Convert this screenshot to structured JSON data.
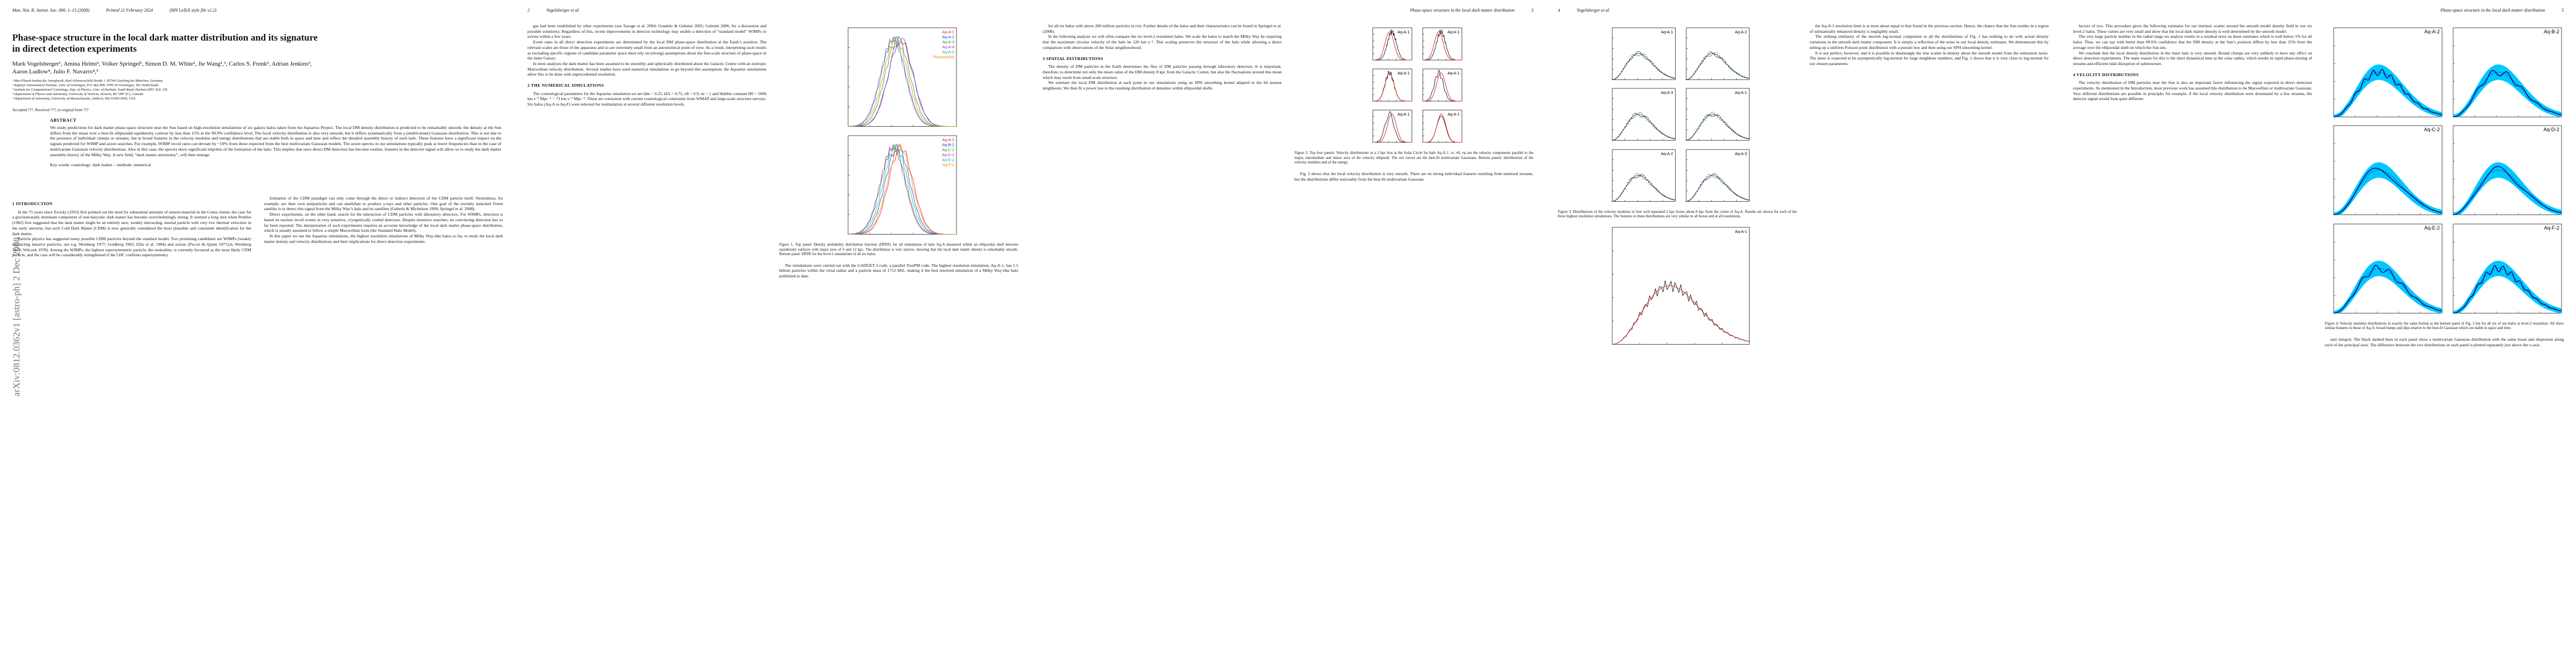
{
  "pages": [
    {
      "header": [
        "Mon. Not. R. Astron. Soc. 000, 1–15 (2008)",
        "Printed 21 February 2024",
        "(MN LaTeX style file v2.2)"
      ],
      "sidebar": "arXiv:0812.0362v1  [astro-ph]  2 Dec 2008",
      "front": {
        "title": "Phase-space structure in the local dark matter distribution and its signature in direct detection experiments",
        "authors": "Mark Vogelsberger¹, Amina Helmi², Volker Springel¹, Simon D. M. White¹, Jie Wang¹,³, Carlos S. Frenk³, Adrian Jenkins³, Aaron Ludlow⁴, Julio F. Navarro⁴,⁵",
        "affiliations": [
          "¹ Max-Planck-Institut für Astrophysik, Karl-Schwarzschild-Straße 1, 85740 Garching bei München, Germany",
          "² Kapteyn Astronomical Institute, Univ. of Groningen, P.O. Box 800, 9700 AV Groningen, The Netherlands",
          "³ Institute for Computational Cosmology, Dep. of Physics, Univ. of Durham, South Road, Durham DH1 3LE, UK",
          "⁴ Department of Physics and Astronomy, University of Victoria, Victoria, BC V8P 5C2, Canada",
          "⁵ Department of Astronomy, University of Massachusetts, Amherst, MA 01003-9305, USA"
        ],
        "received": "Accepted ???. Received ???; in original form ???",
        "abstract_heading": "ABSTRACT",
        "abstract": "We study predictions for dark matter phase-space structure near the Sun based on high-resolution simulations of six galaxy halos taken from the Aquarius Project. The local DM density distribution is predicted to be remarkably smooth; the density at the Sun differs from the mean over a best-fit ellipsoidal equidensity contour by less than 15% at the 99.9% confidence level. The local velocity distribution is also very smooth, but it differs systematically from a (multivariate) Gaussian distribution. This is not due to the presence of individual clumps or streams, but to broad features in the velocity modulus and energy distributions that are stable both in space and time and reflect the detailed assembly history of each halo. These features have a significant impact on the signals predicted for WIMP and axion searches. For example, WIMP recoil rates can deviate by ~10% from those expected from the best multivariate Gaussian models. The axion spectra in our simulations typically peak at lower frequencies than in the case of multivariate Gaussian velocity distributions. Also in this case, the spectra show significant imprints of the formation of the halo. This implies that once direct DM detection has become routine, features in the detector signal will allow us to study the dark matter assembly history of the Milky Way. A new field, “dark matter astronomy”, will then emerge.",
        "keywords": "Key words: cosmology: dark matter – methods: numerical"
      },
      "columns": [
        [
          {
            "heading": "1 INTRODUCTION"
          },
          {
            "paragraph": "In the 75 years since Zwicky (1933) first pointed out the need for substantial amounts of unseen material in the Coma cluster, the case for a gravitationally dominant component of non-baryonic dark matter has become overwhelmingly strong. It seemed a long shot when Peebles (1982) first suggested that the dark matter might be an entirely new, weakly interacting, neutral particle with very low thermal velocities in the early universe, but such Cold Dark Matter (CDM) is now generally considered the most plausible and consistent identification for the dark matter."
          },
          {
            "paragraph": "Particle physics has suggested many possible CDM particles beyond the standard model. Two promising candidates are WIMPs (weakly interacting massive particles, see e.g. Weinberg 1977; Goldberg 1983; Ellis et al. 1984) and axions (Peccei & Quinn 1977a,b; Weinberg 1978; Wilczek 1978). Among the WIMPs, the lightest supersymmetric particle, the neutralino, is currently favoured as the most likely CDM particle, and the case will be considerably strengthened if the LHC confirms supersymmetry."
          }
        ],
        [
          {
            "paragraph": "formation of the CDM paradigm can only come through the direct or indirect detection of the CDM particle itself. Neutralinos, for example, are their own antiparticles and can annihilate to produce γ-rays and other particles. One goal of the recently launched Fermi satellite is to detect this signal from the Milky Way’s halo and its satellites (Gehrels & Michelson 1999; Springel et al. 2008)."
          },
          {
            "paragraph": "Direct experiments, on the other hand, search for the interaction of CDM particles with laboratory detectors. For WIMPs, detection is based on nuclear recoil events in very sensitive, cryogenically cooled detectors. Despite intensive searches, no convincing detection has so far been reported. The interpretation of such experiments requires an accurate knowledge of the local dark matter phase-space distribution, which is usually assumed to follow a simple Maxwellian form (the Standard Halo Model)."
          },
          {
            "paragraph": "In this paper we use the Aquarius simulations, the highest resolution simulations of Milky Way-like halos so far, to study the local dark matter density and velocity distributions and their implications for direct detection experiments."
          }
        ]
      ]
    },
    {
      "header": [
        "2",
        "Vogelsberger et al."
      ],
      "columns": [
        [
          {
            "paragraph": "gas had been established by other experiments (see Savage et al. 2004; Gondolo & Gelmini 2005; Gelmini 2006, for a discussion and possible solutions). Regardless of this, recent improvements in detector technology may enable a detection of “standard model” WIMPs or axions within a few years."
          },
          {
            "paragraph": "Event rates in all direct detection experiments are determined by the local DM phase-space distribution at the Earth’s position. The relevant scales are those of the apparatus and so are extremely small from an astronomical point of view. As a result, interpreting such results as excluding specific regions of candidate parameter space must rely on (strong) assumptions about the fine-scale structure of phase-space in the inner Galaxy."
          },
          {
            "paragraph": "In most analyses the dark matter has been assumed to be smoothly and spherically distributed about the Galactic Centre with an isotropic Maxwellian velocity distribution. Several studies have used numerical simulations to go beyond this assumption; the Aquarius simulations allow this to be done with unprecedented resolution."
          },
          {
            "heading": "2 THE NUMERICAL SIMULATIONS"
          },
          {
            "paragraph": "The cosmological parameters for the Aquarius simulation set are Ωm = 0.25, ΩΛ = 0.75, σ8 = 0.9, ns = 1 and Hubble constant H0 = 100h km s⁻¹ Mpc⁻¹ = 73 km s⁻¹ Mpc⁻¹. These are consistent with current cosmological constraints from WMAP and large-scale structure surveys. Six halos (Aq-A to Aq-F) were selected for resimulation at several different resolution levels."
          }
        ],
        [
          {
            "figure": {
              "panels": [
                {
                  "legend": [
                    "Aq-A-1",
                    "Aq-A-2",
                    "Aq-A-3",
                    "Aq-A-4",
                    "Aq-A-5",
                    "Poisson(64)"
                  ]
                },
                {
                  "legend": [
                    "Aq-A-2",
                    "Aq-B-2",
                    "Aq-C-2",
                    "Aq-D-2",
                    "Aq-E-2",
                    "Aq-F-2"
                  ]
                }
              ]
            }
          },
          {
            "caption": "Figure 1. Top panel: Density probability distribution function (DPDF) for all simulations of halo Aq-A measured within an ellipsoidal shell between equidensity surfaces with major axes of 6 and 12 kpc. The distribution is very narrow, showing that the local dark matter density is remarkably smooth. Bottom panel: DPDF for the level-2 simulations of all six halos."
          },
          {
            "paragraph": "The simulations were carried out with the GADGET-3 code, a parallel TreePM code. The highest resolution simulation, Aq-A-1, has 1.5 billion particles within the virial radius and a particle mass of 1712 M⊙, making it the best resolved simulation of a Milky Way-like halo published to date."
          }
        ]
      ]
    },
    {
      "header": [
        "Phase-space structure in the local dark matter distribution",
        "3"
      ],
      "columns": [
        [
          {
            "paragraph": "for all six halos with above 200 million particles in rvir. Further details of the halos and their characteristics can be found in Springel et al. (2008)."
          },
          {
            "paragraph": "In the following analysis we will often compare the six level-2 resolution halos. We scale the halos to match the Milky Way by requiring that the maximum circular velocity of the halo be 220 km s⁻¹. This scaling preserves the structure of the halo while allowing a direct comparison with observations of the Solar neighbourhood."
          },
          {
            "heading": "3 SPATIAL DISTRIBUTIONS"
          },
          {
            "paragraph": "The density of DM particles in the Earth determines the flux of DM particles passing through laboratory detectors. It is important, therefore, to determine not only the mean value of the DM density 8 kpc from the Galactic Centre, but also the fluctuations around this mean which may result from small-scale structure."
          },
          {
            "paragraph": "We estimate the local DM distribution at each point in our simulations using an SPH smoothing kernel adapted to the 64 nearest neighbours. We then fit a power law to the resulting distribution of densities within ellipsoidal shells."
          }
        ],
        [
          {
            "figure": {
              "panels": [
                {
                  "label": "Aq-A-1"
                },
                {
                  "label": "Aq-A-1"
                },
                {
                  "label": "Aq-A-1"
                },
                {
                  "label": "Aq-A-1"
                },
                {
                  "label": "Aq-A-1"
                },
                {
                  "label": "Aq-A-1"
                }
              ]
            }
          },
          {
            "caption": "Figure 2. Top four panels: Velocity distributions in a 2 kpc box at the Solar Circle for halo Aq-A-1. vr, vθ, vφ are the velocity components parallel to the major, intermediate and minor axes of the velocity ellipsoid. The red curves are the best-fit multivariate Gaussians. Bottom panels: distributions of the velocity modulus and of the energy."
          },
          {
            "paragraph": "Fig. 2 shows that the local velocity distribution is very smooth. There are no strong individual features resulting from unmixed streams, but the distributions differ noticeably from the best-fit multivariate Gaussian."
          }
        ]
      ]
    },
    {
      "header": [
        "4",
        "Vogelsberger et al."
      ],
      "columns": [
        [
          {
            "figure": {
              "panels": [
                {
                  "label": "Aq-A-1"
                },
                {
                  "label": "Aq-A-2"
                },
                {
                  "label": "Aq-A-3"
                },
                {
                  "label": "Aq-A-1"
                },
                {
                  "label": "Aq-A-2"
                },
                {
                  "label": "Aq-A-3"
                }
              ]
            }
          },
          {
            "caption": "Figure 3. Distributions of the velocity modulus in four well separated 2 kpc boxes about 8 kpc from the centre of Aq-A. Results are shown for each of the three highest resolution simulations. The features in these distributions are very similar in all boxes and at all resolutions."
          },
          {
            "figure": {
              "panels": [
                {
                  "label": "Aq-A-1"
                }
              ]
            }
          }
        ],
        [
          {
            "paragraph": "the Aq-A-1 resolution limit is at most about equal to that found in the previous section. Hence, the chance that the Sun resides in a region of substantially enhanced density is negligibly small."
          },
          {
            "paragraph": "The striking similarity of the smooth log-normal component in all the distributions of Fig. 1 has nothing to do with actual density variations in the smooth dark matter component. It is simply a reflection of the noise in our local density estimates. We demonstrate this by setting up a uniform Poisson point distribution with a pseudo box and then using our SPH smoothing kernel."
          },
          {
            "paragraph": "It is not perfect, however, and it is possible to disentangle the true scatter in density about the smooth model from the estimation noise. The latter is expected to be asymptotically log-normal for large neighbour numbers, and Fig. 1 shows that it is very close to log-normal for our chosen parameters."
          }
        ]
      ]
    },
    {
      "header": [
        "Phase-space structure in the local dark matter distribution",
        "5"
      ],
      "columns": [
        [
          {
            "paragraph": "factors of two. This procedure gives the following estimates for our intrinsic scatter around the smooth model density field in our six level-2 halos. These values are very small and show that the local dark matter density is well determined by the smooth model."
          },
          {
            "paragraph": "The very large particle number in the radial range we analyse results in a residual error on these estimates which is well below 1% for all halos. Thus, we can say with better than 99.6% confidence that the DM density at the Sun’s position differs by less than 15% from the average over the ellipsoidal shell on which the Sun sits."
          },
          {
            "paragraph": "We conclude that the local density distribution in the inner halo is very smooth. Bound clumps are very unlikely to have any effect on direct detection experiments. The main reason for this is the short dynamical time at the solar radius, which results in rapid phase-mixing of streams and efficient tidal disruption of substructure."
          },
          {
            "heading": "4 VELOCITY DISTRIBUTIONS"
          },
          {
            "paragraph": "The velocity distribution of DM particles near the Sun is also an important factor influencing the signal expected in direct detection experiments. As mentioned in the Introduction, most previous work has assumed this distribution to be Maxwellian or multivariate Gaussian. Very different distributions are possible in principle; for example, if the local velocity distribution were dominated by a few streams, the detector signal would look quite different."
          }
        ],
        [
          {
            "figure": {
              "panels": [
                {
                  "label": "Aq-A-2"
                },
                {
                  "label": "Aq-B-2"
                },
                {
                  "label": "Aq-C-2"
                },
                {
                  "label": "Aq-D-2"
                },
                {
                  "label": "Aq-E-2"
                },
                {
                  "label": "Aq-F-2"
                }
              ]
            }
          },
          {
            "caption": "Figure 4. Velocity modulus distributions in exactly the same format as the bottom panel of Fig. 2 but for all six of our halos at level-2 resolution. All show similar features to those of Aq-A: broad bumps and dips relative to the best-fit Gaussian which are stable in space and time."
          },
          {
            "paragraph": "unit integral. The black dashed lines in each panel show a multivariate Gaussian distribution with the same mean and dispersion along each of the principal axes. The difference between the two distributions in each panel is plotted separately just above the x-axis."
          }
        ]
      ]
    }
  ]
}
